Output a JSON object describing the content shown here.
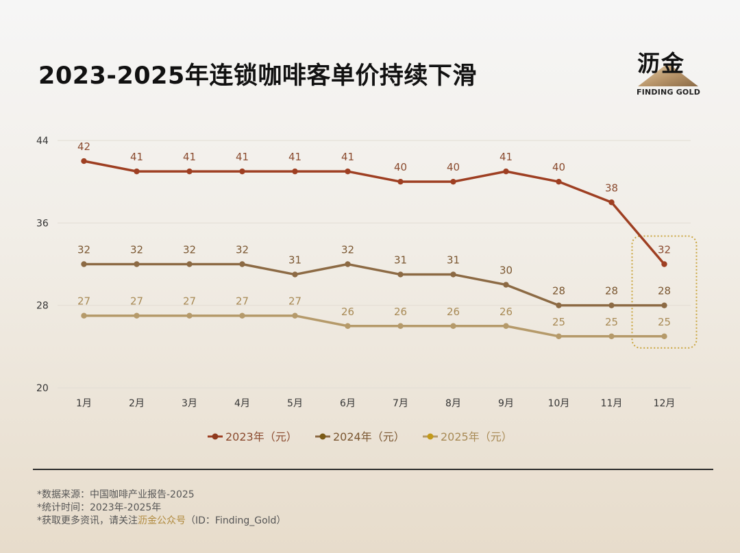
{
  "title": "2023-2025年连锁咖啡客单价持续下滑",
  "logo": {
    "cn": "沥金",
    "en": "FINDING GOLD"
  },
  "chart_data": {
    "type": "line",
    "categories": [
      "1月",
      "2月",
      "3月",
      "4月",
      "5月",
      "6月",
      "7月",
      "8月",
      "9月",
      "10月",
      "11月",
      "12月"
    ],
    "series": [
      {
        "name": "2023年（元）",
        "color": "#9e3f22",
        "label_color": "#8a4a2e",
        "values": [
          42,
          41,
          41,
          41,
          41,
          41,
          40,
          40,
          41,
          40,
          38,
          32
        ]
      },
      {
        "name": "2024年（元）",
        "color": "#8c6a44",
        "label_color": "#7a5630",
        "values": [
          32,
          32,
          32,
          32,
          31,
          32,
          31,
          31,
          30,
          28,
          28,
          28
        ]
      },
      {
        "name": "2025年（元）",
        "color": "#b59a6a",
        "label_color": "#a88a55",
        "values": [
          27,
          27,
          27,
          27,
          27,
          26,
          26,
          26,
          26,
          25,
          25,
          25
        ]
      }
    ],
    "legend_dot_colors": [
      "#8f3a1e",
      "#7a5a16",
      "#c39a1a"
    ],
    "y_ticks": [
      20,
      28,
      36,
      44
    ],
    "ylim": [
      20,
      44
    ],
    "highlight_category": "12月",
    "highlight_color": "#c9a43b",
    "xlabel": "",
    "ylabel": "",
    "grid": true,
    "legend": "bottom"
  },
  "footnotes": {
    "source": "*数据来源：中国咖啡产业报告-2025",
    "period": "*统计时间：2023年-2025年",
    "contact_prefix": "*获取更多资讯，请关注",
    "contact_highlight": "沥金公众号",
    "contact_suffix": "（ID：Finding_Gold）"
  }
}
